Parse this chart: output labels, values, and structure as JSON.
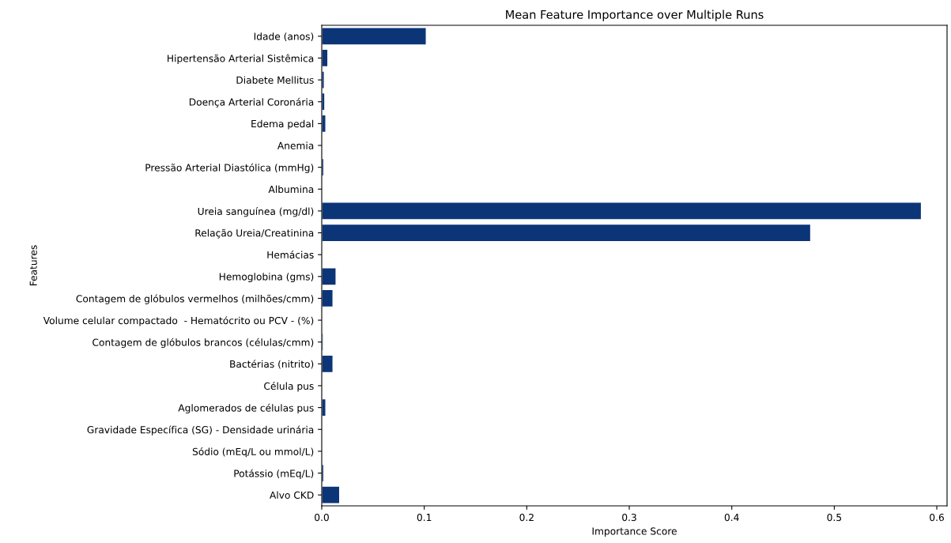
{
  "chart_data": {
    "type": "bar",
    "orientation": "horizontal",
    "title": "Mean Feature Importance over Multiple Runs",
    "xlabel": "Importance Score",
    "ylabel": "Features",
    "categories": [
      "Idade (anos)",
      "Hipertensão Arterial Sistêmica",
      "Diabete Mellitus",
      "Doença Arterial Coronária",
      "Edema pedal",
      "Anemia",
      "Pressão Arterial Diastólica (mmHg)",
      "Albumina",
      "Ureia sanguínea (mg/dl)",
      "Relação Ureia/Creatinina",
      "Hemácias",
      "Hemoglobina (gms)",
      "Contagem de glóbulos vermelhos (milhões/cmm)",
      "Volume celular compactado  - Hematócrito ou PCV - (%)",
      "Contagem de glóbulos brancos (células/cmm)",
      "Bactérias (nitrito)",
      "Célula pus",
      "Aglomerados de células pus",
      "Gravidade Específica (SG) - Densidade urinária",
      "Sódio (mEq/L ou mmol/L)",
      "Potássio (mEq/L)",
      "Alvo CKD"
    ],
    "values": [
      0.102,
      0.006,
      0.0025,
      0.003,
      0.004,
      0.001,
      0.002,
      0.001,
      0.585,
      0.477,
      0,
      0.014,
      0.011,
      0,
      0.0015,
      0.011,
      0.001,
      0.004,
      0,
      0,
      0.002,
      0.0175
    ],
    "color": "#0c3578",
    "xlim": [
      0,
      0.61
    ],
    "xticks": [
      {
        "value": 0,
        "label": "0.0"
      },
      0.1,
      0.2,
      0.3,
      0.4,
      0.5,
      0.6
    ],
    "grid": false,
    "legend": false
  }
}
